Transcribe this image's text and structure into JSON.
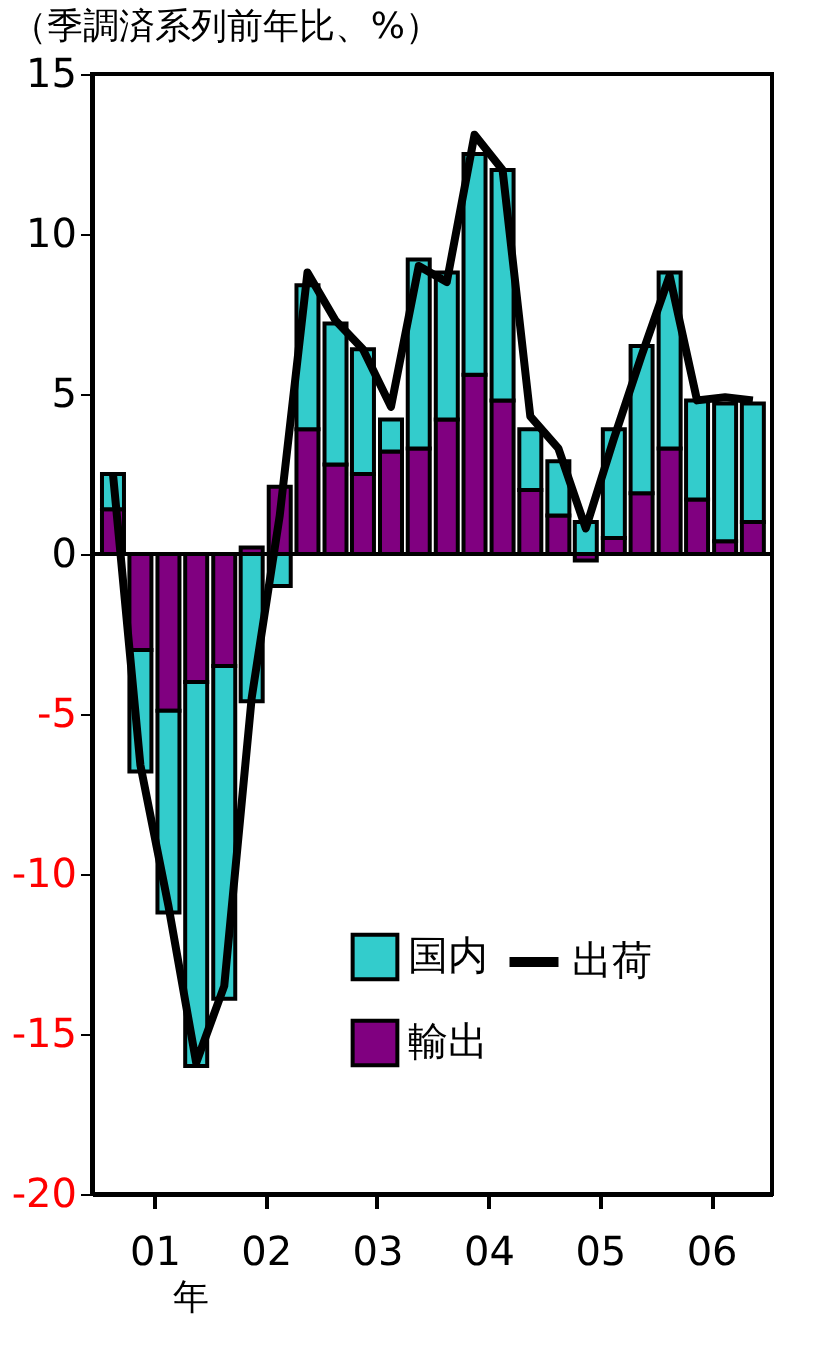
{
  "chart_data": {
    "type": "bar",
    "title": "（季調済系列前年比、%）",
    "xlabel": "年",
    "stacked": true,
    "x": [
      "2001-02-15",
      "2001-05-16",
      "2001-08-16",
      "2001-11-15",
      "2002-02-15",
      "2002-05-16",
      "2002-08-16",
      "2002-11-15",
      "2003-02-15",
      "2003-05-16",
      "2003-08-16",
      "2003-11-15",
      "2004-02-15",
      "2004-05-16",
      "2004-08-16",
      "2004-11-15",
      "2005-02-15",
      "2005-05-16",
      "2005-08-16",
      "2005-11-15",
      "2006-02-15",
      "2006-05-16",
      "2006-08-16",
      "2006-11-15"
    ],
    "series": [
      {
        "name": "輸出",
        "color": "#800080",
        "values": [
          1.4,
          -3.0,
          -4.9,
          -4.0,
          -3.5,
          0.2,
          2.1,
          3.9,
          2.8,
          2.5,
          3.2,
          3.3,
          4.2,
          5.6,
          4.8,
          2.0,
          1.2,
          -0.2,
          0.5,
          1.9,
          3.3,
          1.7,
          0.4,
          1.0
        ]
      },
      {
        "name": "国内",
        "color": "#33cccc",
        "values": [
          1.1,
          -3.8,
          -6.3,
          -12.0,
          -10.4,
          -4.6,
          -1.0,
          4.5,
          4.4,
          3.9,
          1.0,
          5.9,
          4.6,
          6.9,
          7.2,
          1.9,
          1.7,
          1.0,
          3.4,
          4.6,
          5.5,
          3.1,
          4.3,
          3.7
        ]
      },
      {
        "name": "出荷",
        "color": "#000000",
        "type": "line",
        "values": [
          2.5,
          -6.6,
          -11.0,
          -15.9,
          -13.5,
          -4.5,
          1.2,
          8.8,
          7.3,
          6.4,
          4.6,
          9.0,
          8.5,
          13.1,
          12.0,
          4.3,
          3.3,
          0.8,
          3.6,
          6.2,
          8.7,
          4.8,
          4.9,
          4.8
        ]
      }
    ],
    "xlim": [
      "2001-01-10",
      "2006-12-15"
    ],
    "xticks": [
      {
        "value": "2001-07-01",
        "label": "01"
      },
      {
        "value": "2002-07-01",
        "label": "02"
      },
      {
        "value": "2003-07-01",
        "label": "03"
      },
      {
        "value": "2004-07-01",
        "label": "04"
      },
      {
        "value": "2005-07-01",
        "label": "05"
      },
      {
        "value": "2006-07-01",
        "label": "06"
      }
    ],
    "ylim": [
      -20,
      15
    ],
    "yticks": [
      -20,
      -15,
      -10,
      -5,
      0,
      5,
      10,
      15
    ],
    "ref_lines": [
      {
        "axis": "y",
        "value": 0,
        "color": "#000000"
      }
    ],
    "grid": false,
    "legend": "bottom right",
    "marker": "none",
    "line_style": "solid"
  }
}
